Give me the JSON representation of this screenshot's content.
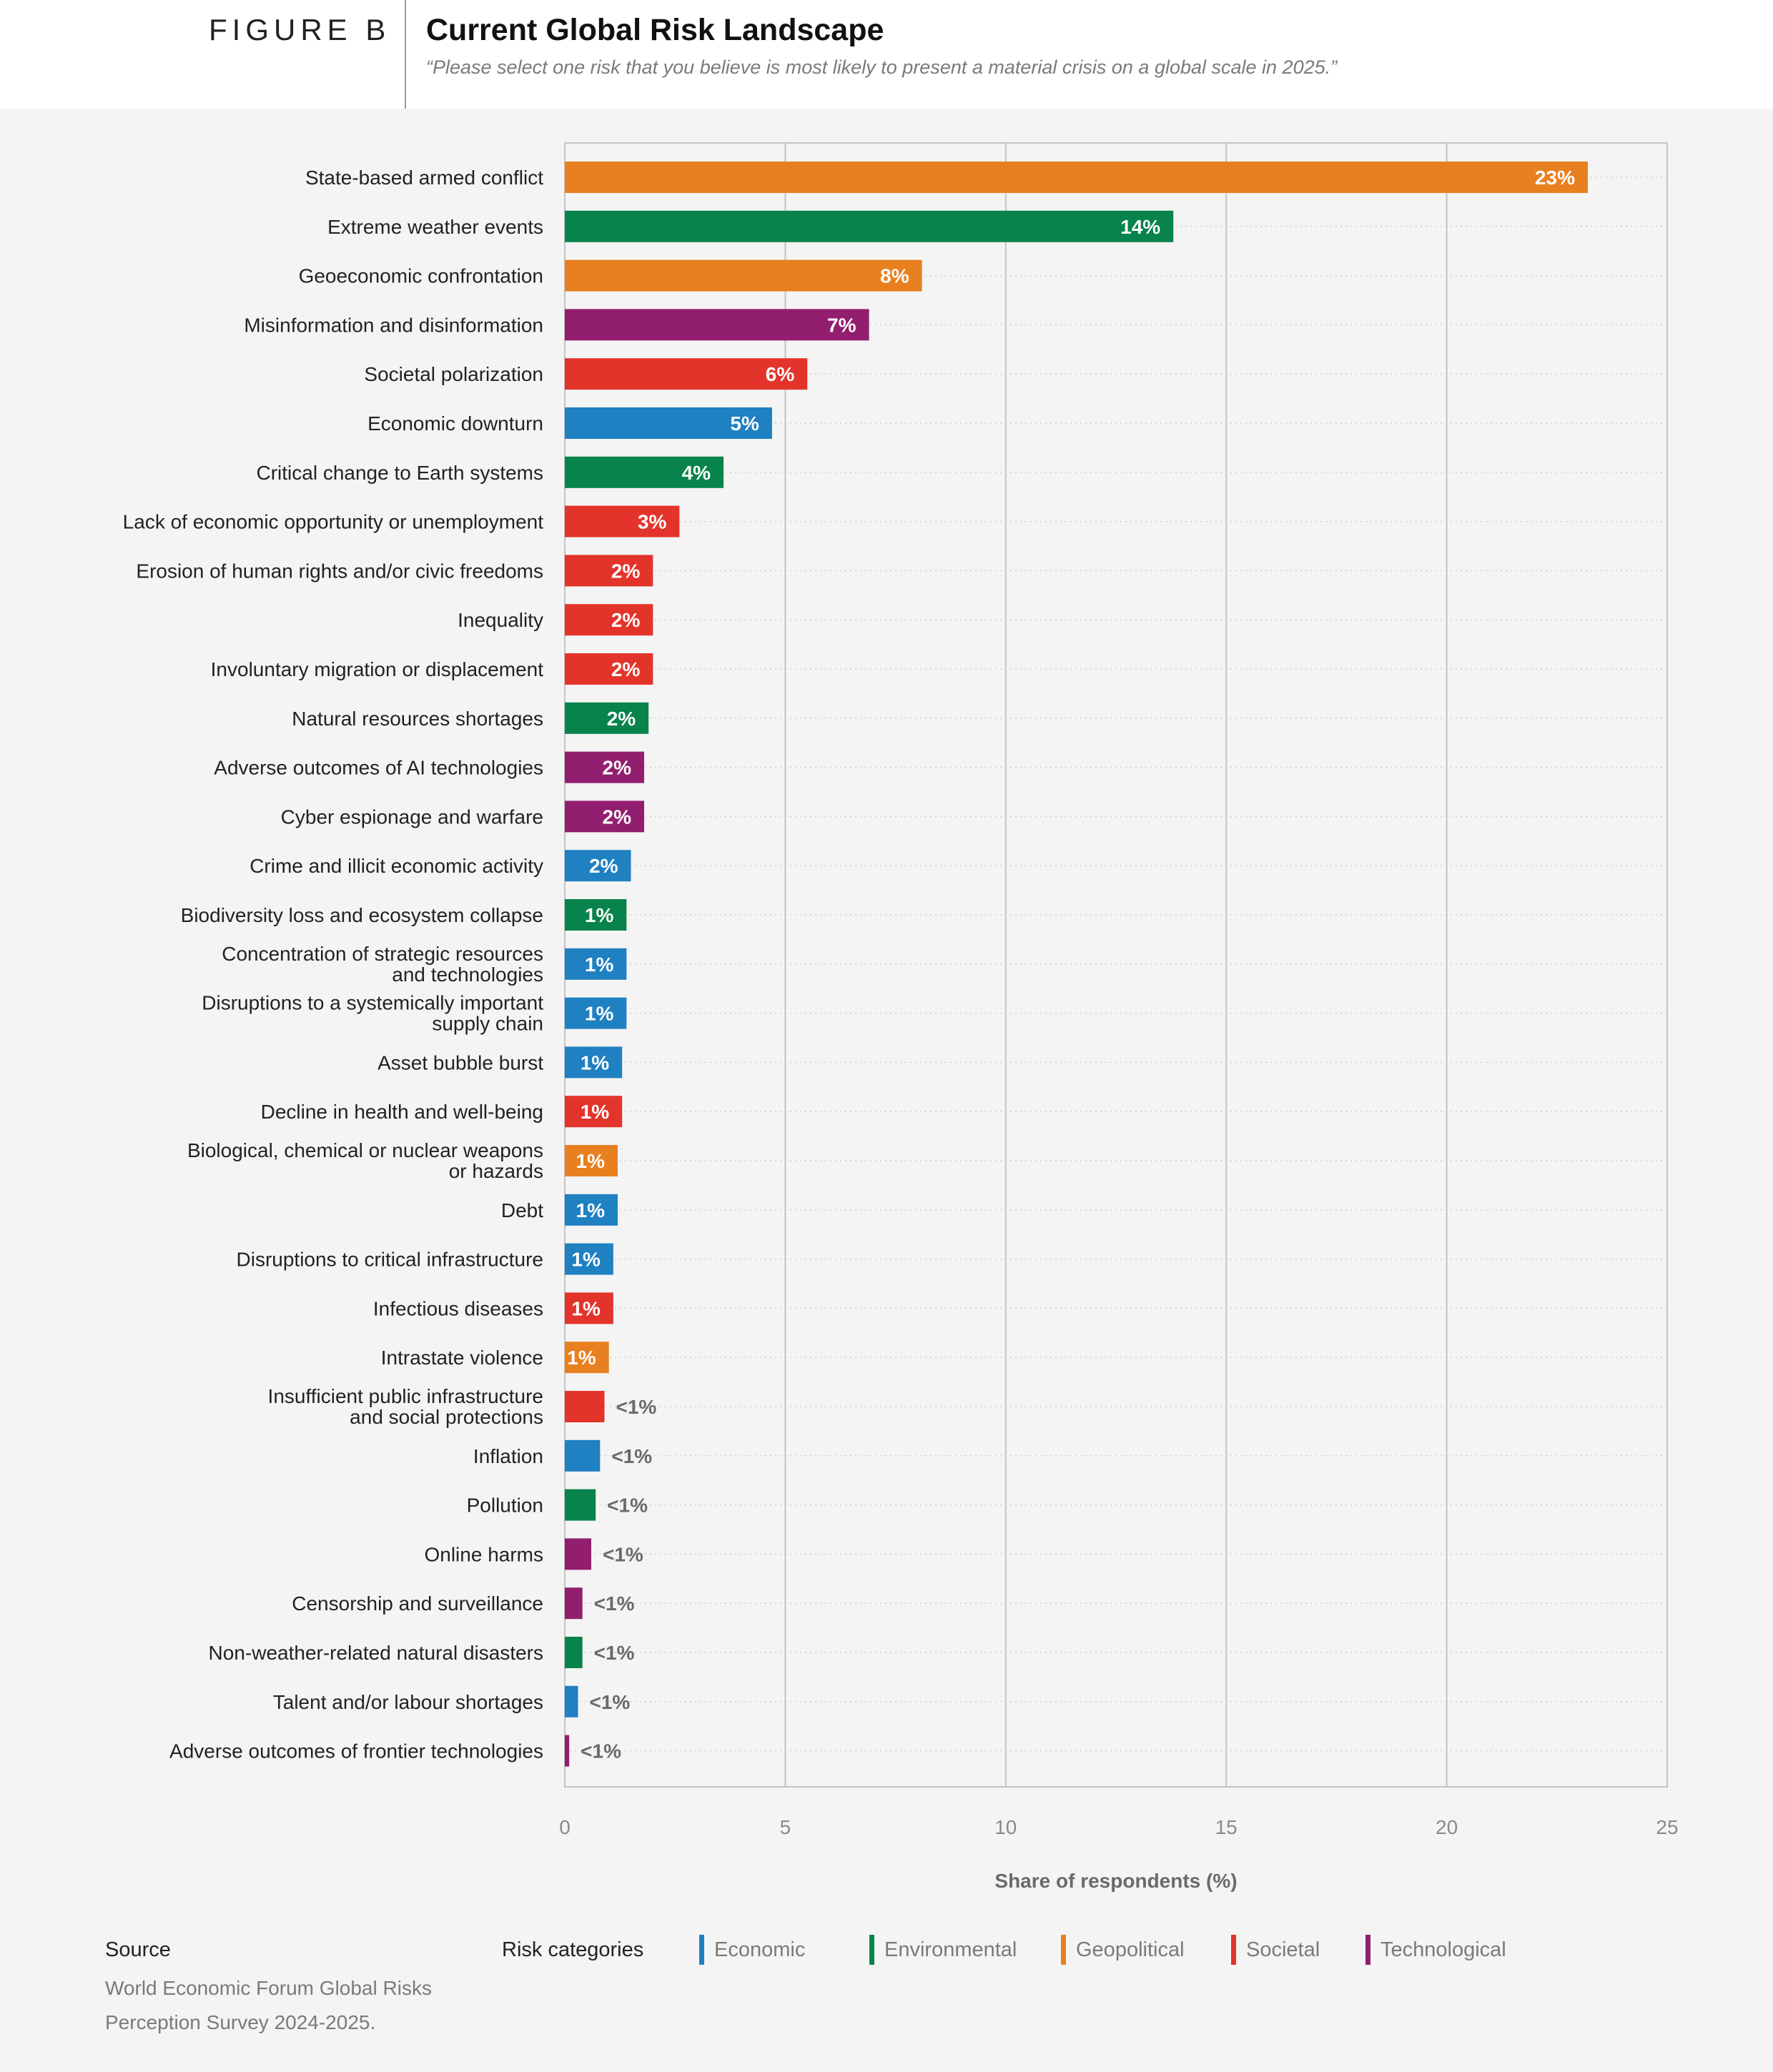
{
  "header": {
    "figure_label": "FIGURE B",
    "title": "Current Global Risk Landscape",
    "subtitle": "“Please select one risk that you believe is most likely to present a material crisis on a global scale in 2025.”"
  },
  "chart_data": {
    "type": "bar",
    "orientation": "horizontal",
    "xlabel": "Share of respondents (%)",
    "xlim": [
      0,
      25
    ],
    "xticks": [
      0,
      5,
      10,
      15,
      20,
      25
    ],
    "grid": "vertical solid at ticks, horizontal dotted per row",
    "category_colors": {
      "Economic": "#1f80c2",
      "Environmental": "#07834b",
      "Geopolitical": "#e8801f",
      "Societal": "#e3342c",
      "Technological": "#921e6f"
    },
    "bars": [
      {
        "label": "State-based armed conflict",
        "value": 23.2,
        "display": "23%",
        "category": "Geopolitical"
      },
      {
        "label": "Extreme weather events",
        "value": 13.8,
        "display": "14%",
        "category": "Environmental"
      },
      {
        "label": "Geoeconomic confrontation",
        "value": 8.1,
        "display": "8%",
        "category": "Geopolitical"
      },
      {
        "label": "Misinformation and disinformation",
        "value": 6.9,
        "display": "7%",
        "category": "Technological"
      },
      {
        "label": "Societal polarization",
        "value": 5.5,
        "display": "6%",
        "category": "Societal"
      },
      {
        "label": "Economic downturn",
        "value": 4.7,
        "display": "5%",
        "category": "Economic"
      },
      {
        "label": "Critical change to Earth systems",
        "value": 3.6,
        "display": "4%",
        "category": "Environmental"
      },
      {
        "label": "Lack of economic opportunity or unemployment",
        "value": 2.6,
        "display": "3%",
        "category": "Societal"
      },
      {
        "label": "Erosion of human rights and/or civic freedoms",
        "value": 2.0,
        "display": "2%",
        "category": "Societal"
      },
      {
        "label": "Inequality",
        "value": 2.0,
        "display": "2%",
        "category": "Societal"
      },
      {
        "label": "Involuntary migration or displacement",
        "value": 2.0,
        "display": "2%",
        "category": "Societal"
      },
      {
        "label": "Natural resources shortages",
        "value": 1.9,
        "display": "2%",
        "category": "Environmental"
      },
      {
        "label": "Adverse outcomes of AI technologies",
        "value": 1.8,
        "display": "2%",
        "category": "Technological"
      },
      {
        "label": "Cyber espionage and warfare",
        "value": 1.8,
        "display": "2%",
        "category": "Technological"
      },
      {
        "label": "Crime and illicit economic activity",
        "value": 1.5,
        "display": "2%",
        "category": "Economic"
      },
      {
        "label": "Biodiversity loss and ecosystem collapse",
        "value": 1.4,
        "display": "1%",
        "category": "Environmental"
      },
      {
        "label": "Concentration of strategic resources and technologies",
        "lines": [
          "Concentration of strategic resources",
          "and technologies"
        ],
        "value": 1.4,
        "display": "1%",
        "category": "Economic"
      },
      {
        "label": "Disruptions to a systemically important supply chain",
        "lines": [
          "Disruptions to a systemically important",
          "supply chain"
        ],
        "value": 1.4,
        "display": "1%",
        "category": "Economic"
      },
      {
        "label": "Asset bubble burst",
        "value": 1.3,
        "display": "1%",
        "category": "Economic"
      },
      {
        "label": "Decline in health and well-being",
        "value": 1.3,
        "display": "1%",
        "category": "Societal"
      },
      {
        "label": "Biological, chemical or nuclear weapons or hazards",
        "lines": [
          "Biological, chemical or nuclear weapons",
          "or hazards"
        ],
        "value": 1.2,
        "display": "1%",
        "category": "Geopolitical"
      },
      {
        "label": "Debt",
        "value": 1.2,
        "display": "1%",
        "category": "Economic"
      },
      {
        "label": "Disruptions to critical infrastructure",
        "value": 1.1,
        "display": "1%",
        "category": "Economic"
      },
      {
        "label": "Infectious diseases",
        "value": 1.1,
        "display": "1%",
        "category": "Societal"
      },
      {
        "label": "Intrastate violence",
        "value": 1.0,
        "display": "1%",
        "category": "Geopolitical"
      },
      {
        "label": "Insufficient public infrastructure and social protections",
        "lines": [
          "Insufficient public infrastructure",
          "and social protections"
        ],
        "value": 0.9,
        "display": "<1%",
        "category": "Societal"
      },
      {
        "label": "Inflation",
        "value": 0.8,
        "display": "<1%",
        "category": "Economic"
      },
      {
        "label": "Pollution",
        "value": 0.7,
        "display": "<1%",
        "category": "Environmental"
      },
      {
        "label": "Online harms",
        "value": 0.6,
        "display": "<1%",
        "category": "Technological"
      },
      {
        "label": "Censorship and surveillance",
        "value": 0.4,
        "display": "<1%",
        "category": "Technological"
      },
      {
        "label": "Non-weather-related natural disasters",
        "value": 0.4,
        "display": "<1%",
        "category": "Environmental"
      },
      {
        "label": "Talent and/or labour shortages",
        "value": 0.3,
        "display": "<1%",
        "category": "Economic"
      },
      {
        "label": "Adverse outcomes of frontier technologies",
        "value": 0.1,
        "display": "<1%",
        "category": "Technological"
      }
    ]
  },
  "footer": {
    "source_heading": "Source",
    "source_text": "World Economic Forum Global Risks Perception Survey 2024-2025.",
    "legend_heading": "Risk categories",
    "legend": [
      {
        "label": "Economic",
        "color": "#1f80c2"
      },
      {
        "label": "Environmental",
        "color": "#07834b"
      },
      {
        "label": "Geopolitical",
        "color": "#e8801f"
      },
      {
        "label": "Societal",
        "color": "#e3342c"
      },
      {
        "label": "Technological",
        "color": "#921e6f"
      }
    ]
  }
}
